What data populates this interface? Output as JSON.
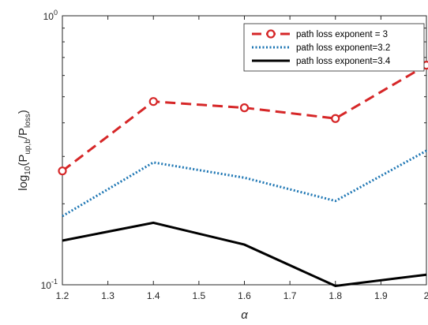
{
  "chart_data": {
    "type": "line",
    "x": [
      1.2,
      1.4,
      1.6,
      1.8,
      2.0
    ],
    "xlim": [
      1.2,
      2.0
    ],
    "ylim": [
      0.1,
      1.0
    ],
    "yscale": "log",
    "xticks": [
      1.2,
      1.3,
      1.4,
      1.5,
      1.6,
      1.7,
      1.8,
      1.9,
      2.0
    ],
    "xtick_labels": [
      "1.2",
      "1.3",
      "1.4",
      "1.5",
      "1.6",
      "1.7",
      "1.8",
      "1.9",
      "2"
    ],
    "ytick_labels": {
      "major_low": {
        "base": "10",
        "exp": "-1"
      },
      "major_high": {
        "base": "10",
        "exp": "0"
      }
    },
    "xlabel": "α",
    "ylabel": {
      "prefix": "log",
      "prefix_sub": "10",
      "open": "(P",
      "num_sub": "up,b",
      "slash": "/P",
      "den_sub": "loss",
      "close": ")"
    },
    "grid": false,
    "legend_position": "top-right",
    "series": [
      {
        "name": "path loss exponent = 3",
        "values": [
          0.265,
          0.48,
          0.455,
          0.415,
          0.655
        ],
        "color": "#d62728",
        "linestyle": "dashed",
        "marker": "circle"
      },
      {
        "name": "path loss exponent=3.2",
        "values": [
          0.18,
          0.285,
          0.25,
          0.205,
          0.315
        ],
        "color": "#1f77b4",
        "linestyle": "dotted",
        "marker": "none"
      },
      {
        "name": "path loss exponent=3.4",
        "values": [
          0.146,
          0.17,
          0.141,
          0.099,
          0.109
        ],
        "color": "#000000",
        "linestyle": "solid",
        "marker": "none"
      }
    ]
  }
}
